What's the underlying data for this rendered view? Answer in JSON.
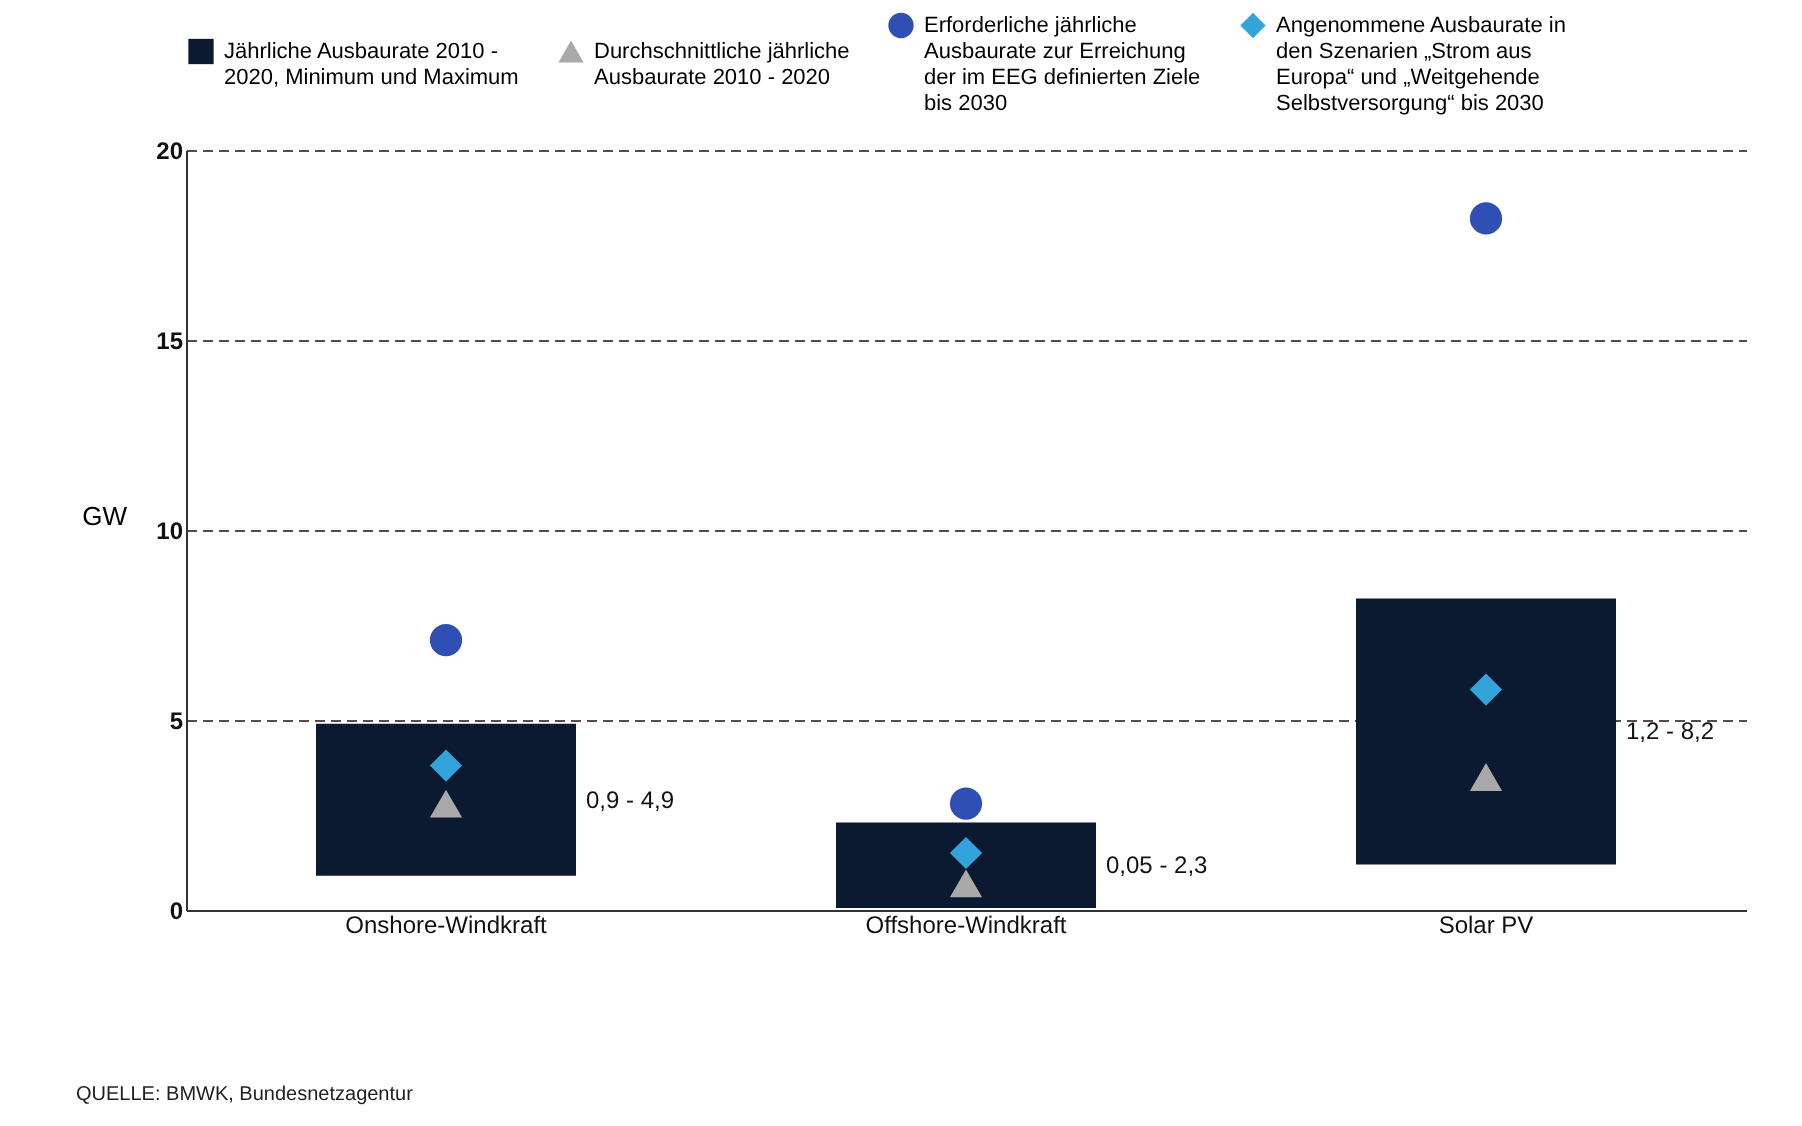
{
  "chart_data": {
    "type": "bar",
    "ylabel": "GW",
    "categories": [
      "Onshore-Windkraft",
      "Offshore-Windkraft",
      "Solar PV"
    ],
    "series": [
      {
        "name": "Jährliche Ausbaurate 2010 - 2020, Minimum und Maximum",
        "color": "#0b1a30",
        "base": [
          0.9,
          0.05,
          1.2
        ],
        "values": [
          4.0,
          2.25,
          7.0
        ]
      },
      {
        "type": "scatter",
        "marker": "triangle",
        "name": "Durchschnittliche jährliche Ausbaurate 2010 - 2020",
        "color": "#a9a9a9",
        "values": [
          2.8,
          0.7,
          3.5
        ]
      },
      {
        "type": "scatter",
        "marker": "circle",
        "name": "Erforderliche jährliche Ausbaurate zur Erreichung der im EEG definierten Ziele bis 2030",
        "color": "#2f4fb5",
        "values": [
          7.1,
          2.8,
          18.2
        ]
      },
      {
        "type": "scatter",
        "marker": "diamond",
        "name": "Angenommene Ausbaurate in den Szenarien „Strom aus Europa“ und „Weitgehende Selbstversorgung“ bis 2030",
        "color": "#33a3dc",
        "values": [
          3.8,
          1.5,
          5.8
        ]
      }
    ],
    "ylim": [
      0,
      20
    ],
    "yticks": [
      0,
      5,
      10,
      15,
      20
    ],
    "grid": "y",
    "legend": "top",
    "annotations": [
      "0,9 - 4,9",
      "0,05 - 2,3",
      "1,2 - 8,2",
      "QUELLE: BMWK, Bundesnetzagentur"
    ]
  }
}
